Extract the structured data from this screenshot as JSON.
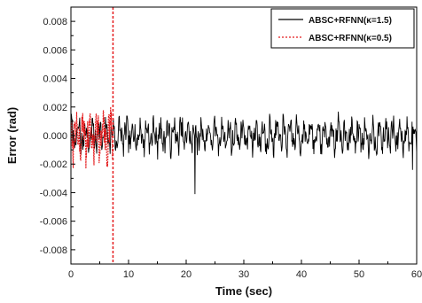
{
  "chart_data": {
    "type": "line",
    "title": "",
    "xlabel": "Time (sec)",
    "ylabel": "Error (rad)",
    "xlim": [
      0,
      60
    ],
    "ylim": [
      -0.009,
      0.009
    ],
    "x_ticks": [
      0,
      10,
      20,
      30,
      40,
      50,
      60
    ],
    "y_ticks": [
      -0.008,
      -0.006,
      -0.004,
      -0.002,
      0.0,
      0.002,
      0.004,
      0.006,
      0.008
    ],
    "x_tick_labels": [
      "0",
      "10",
      "20",
      "30",
      "40",
      "50",
      "60"
    ],
    "y_tick_labels": [
      "-0.008",
      "-0.006",
      "-0.004",
      "-0.002",
      "0.000",
      "0.002",
      "0.004",
      "0.006",
      "0.008"
    ],
    "grid": false,
    "legend_position": "top-right",
    "vertical_marker_x": 7.3,
    "series": [
      {
        "name": "ABSC+RFNN(κ=1.5)",
        "color": "#000000",
        "style": "solid",
        "x_range": [
          0,
          60
        ],
        "amplitude": 0.0012,
        "peaks": [
          {
            "x": 21.5,
            "y": -0.0041
          },
          {
            "x": 59.3,
            "y": -0.0024
          }
        ]
      },
      {
        "name": "ABSC+RFNN(κ=0.5)",
        "color": "#e41a1c",
        "style": "dotted",
        "x_range": [
          0,
          7.3
        ],
        "amplitude": 0.0018
      }
    ]
  }
}
